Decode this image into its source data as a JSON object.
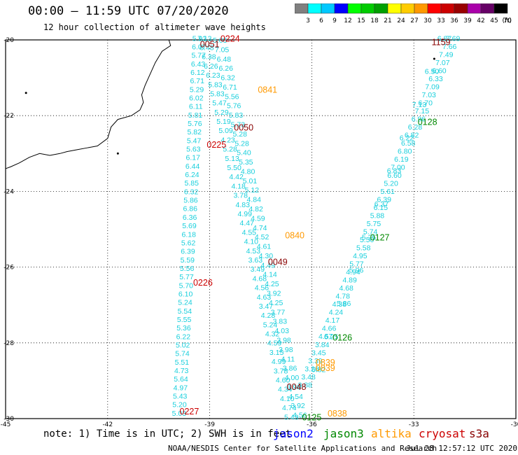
{
  "header": {
    "title": "00:00 – 11:59 UTC 07/20/2020",
    "subtitle": "12 hour collection of altimeter wave heights"
  },
  "colorbar": {
    "unit": "(ft)",
    "ticks": [
      "3",
      "6",
      "9",
      "12",
      "15",
      "18",
      "21",
      "24",
      "27",
      "30",
      "33",
      "36",
      "39",
      "42",
      "45",
      "70"
    ],
    "colors": [
      "#808080",
      "#00ffff",
      "#00c8ff",
      "#0000ff",
      "#00ff00",
      "#00cc00",
      "#00a000",
      "#ffff00",
      "#ffcc00",
      "#ff9900",
      "#ff0000",
      "#cc0000",
      "#990000",
      "#aa00aa",
      "#660066",
      "#000000"
    ]
  },
  "axes": {
    "lat_labels": [
      "-20",
      "-22",
      "-24",
      "-26",
      "-28",
      "-30"
    ],
    "lon_labels": [
      "-45",
      "-42",
      "-39",
      "-36",
      "-33",
      "-30"
    ]
  },
  "footer": {
    "note": "note: 1) Time is in UTC; 2) SWH is in feet",
    "legend": [
      {
        "name": "jason2",
        "color": "#0000ff"
      },
      {
        "name": "jason3",
        "color": "#008800"
      },
      {
        "name": "altika",
        "color": "#ff9900"
      },
      {
        "name": "cryosat",
        "color": "#cc0000"
      },
      {
        "name": "s3a",
        "color": "#880000"
      }
    ],
    "credit": "NOAA/NESDIS Center for Satellite Applications and Research",
    "date": "Jul 28 12:57:12 UTC 2020"
  },
  "time_labels": [
    {
      "text": "0051",
      "lon": -39.0,
      "lat": -20.1,
      "color": "#880000"
    },
    {
      "text": "0224",
      "lon": -38.4,
      "lat": -19.95,
      "color": "#cc0000"
    },
    {
      "text": "0841",
      "lon": -37.3,
      "lat": -21.3,
      "color": "#ff9900"
    },
    {
      "text": "0050",
      "lon": -38.0,
      "lat": -22.3,
      "color": "#880000"
    },
    {
      "text": "0225",
      "lon": -38.8,
      "lat": -22.75,
      "color": "#cc0000"
    },
    {
      "text": "0840",
      "lon": -36.5,
      "lat": -25.15,
      "color": "#ff9900"
    },
    {
      "text": "0049",
      "lon": -37.0,
      "lat": -25.85,
      "color": "#880000"
    },
    {
      "text": "0226",
      "lon": -39.2,
      "lat": -26.4,
      "color": "#cc0000"
    },
    {
      "text": "0839",
      "lon": -35.6,
      "lat": -28.5,
      "color": "#ff9900"
    },
    {
      "text": "0839",
      "lon": -35.6,
      "lat": -28.65,
      "color": "#ff9900"
    },
    {
      "text": "0048",
      "lon": -36.45,
      "lat": -29.15,
      "color": "#880000"
    },
    {
      "text": "0227",
      "lon": -39.6,
      "lat": -29.8,
      "color": "#cc0000"
    },
    {
      "text": "0125",
      "lon": -36.0,
      "lat": -29.95,
      "color": "#008800"
    },
    {
      "text": "0838",
      "lon": -35.25,
      "lat": -29.85,
      "color": "#ff9900"
    },
    {
      "text": "0126",
      "lon": -35.1,
      "lat": -27.85,
      "color": "#008800"
    },
    {
      "text": "0127",
      "lon": -34.0,
      "lat": -25.2,
      "color": "#008800"
    },
    {
      "text": "0128",
      "lon": -32.6,
      "lat": -22.15,
      "color": "#008800"
    },
    {
      "text": "1159",
      "lon": -32.2,
      "lat": -20.05,
      "color": "#880000"
    }
  ],
  "tracks": [
    {
      "name": "track-a",
      "start": [
        -39.3,
        -19.95
      ],
      "end": [
        -39.9,
        -29.85
      ],
      "values": [
        "5.93",
        "6.07",
        "5.77",
        "6.43",
        "6.12",
        "6.71",
        "5.29",
        "6.02",
        "6.11",
        "5.81",
        "5.76",
        "5.82",
        "5.47",
        "5.63",
        "6.17",
        "6.44",
        "6.24",
        "5.85",
        "6.32",
        "5.86",
        "6.86",
        "6.36",
        "5.69",
        "6.18",
        "5.62",
        "6.39",
        "5.59",
        "5.56",
        "5.77",
        "5.70",
        "6.10",
        "5.24",
        "5.54",
        "5.55",
        "5.36",
        "6.22",
        "5.02",
        "5.74",
        "5.51",
        "4.73",
        "5.64",
        "4.97",
        "5.43",
        "5.20",
        "5.03"
      ]
    },
    {
      "name": "track-b",
      "start": [
        -39.15,
        -19.95
      ],
      "end": [
        -36.6,
        -29.95
      ],
      "values": [
        "7.13",
        "6.48",
        "6.38",
        "6.26",
        "6.23",
        "5.83",
        "5.83",
        "5.47",
        "5.29",
        "5.19",
        "5.09",
        "4.23",
        "5.28",
        "5.13",
        "5.50",
        "4.42",
        "4.18",
        "3.78",
        "4.83",
        "4.99",
        "4.47",
        "4.55",
        "4.10",
        "4.53",
        "3.63",
        "3.49",
        "4.68",
        "4.56",
        "4.63",
        "3.47",
        "4.28",
        "5.24",
        "4.32",
        "4.59",
        "3.15",
        "4.99",
        "3.78",
        "4.60",
        "4.34",
        "4.10",
        "4.74",
        "5.43"
      ]
    },
    {
      "name": "track-c",
      "start": [
        -38.7,
        -20.0
      ],
      "end": [
        -36.35,
        -29.9
      ],
      "values": [
        "5.03",
        "7.05",
        "6.48",
        "6.26",
        "6.32",
        "6.71",
        "5.56",
        "5.76",
        "5.83",
        "5.73",
        "5.28",
        "5.28",
        "5.40",
        "5.35",
        "4.80",
        "5.01",
        "5.12",
        "4.84",
        "4.82",
        "4.59",
        "4.74",
        "4.52",
        "4.61",
        "4.30",
        "4.49",
        "4.14",
        "4.25",
        "3.92",
        "4.25",
        "3.77",
        "3.83",
        "4.03",
        "3.98",
        "3.98",
        "4.11",
        "3.86",
        "4.00",
        "3.98",
        "4.54",
        "3.92",
        "4.56"
      ]
    },
    {
      "name": "track-d",
      "start": [
        -31.85,
        -19.95
      ],
      "end": [
        -36.2,
        -29.1
      ],
      "values": [
        "7.69",
        "7.66",
        "7.49",
        "7.07",
        "6.60",
        "6.33",
        "7.09",
        "7.03",
        "6.70",
        "7.15",
        "6.96",
        "6.28",
        "6.82",
        "6.58",
        "6.80",
        "6.19",
        "7.00",
        "6.60",
        "5.20",
        "5.61",
        "6.39",
        "6.15",
        "5.88",
        "5.75",
        "5.74",
        "5.50",
        "5.58",
        "4.95",
        "5.77",
        "4.94",
        "4.89",
        "4.68",
        "4.78",
        "4.38",
        "4.24",
        "4.17",
        "4.66",
        "4.57",
        "3.84",
        "3.45",
        "3.39",
        "3.26",
        "3.48",
        "3.88"
      ]
    },
    {
      "name": "track-e",
      "start": [
        -32.1,
        -19.95
      ],
      "end": [
        -35.8,
        -28.7
      ],
      "values": [
        "6.87",
        "6.50",
        "7.13",
        "6.22",
        "6.83",
        "6.37",
        "5.25",
        "5.96",
        "5.86",
        "6.25",
        "6.82"
      ]
    }
  ]
}
